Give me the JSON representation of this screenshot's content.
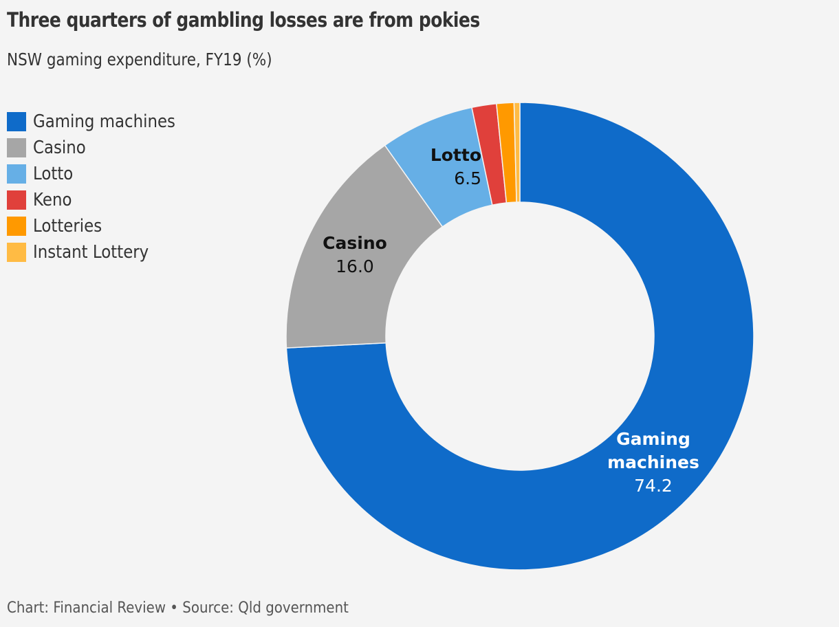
{
  "header": {
    "title": "Three quarters of gambling losses are from pokies",
    "subtitle": "NSW gaming expenditure, FY19 (%)"
  },
  "legend": {
    "items": [
      {
        "label": "Gaming machines",
        "color": "#0f6bc9"
      },
      {
        "label": "Casino",
        "color": "#a6a6a6"
      },
      {
        "label": "Lotto",
        "color": "#66afe6"
      },
      {
        "label": "Keno",
        "color": "#e0403b"
      },
      {
        "label": "Lotteries",
        "color": "#ff9900"
      },
      {
        "label": "Instant Lottery",
        "color": "#ffbb44"
      }
    ]
  },
  "labels": {
    "gaming": {
      "name_line1": "Gaming",
      "name_line2": "machines",
      "value": "74.2"
    },
    "casino": {
      "name": "Casino",
      "value": "16.0"
    },
    "lotto": {
      "name": "Lotto",
      "value": "6.5"
    }
  },
  "footer": {
    "credit": "Chart: Financial Review • Source: Qld government"
  },
  "chart_data": {
    "type": "pie",
    "subtype": "donut",
    "title": "Three quarters of gambling losses are from pokies",
    "subtitle": "NSW gaming expenditure, FY19 (%)",
    "categories": [
      "Gaming machines",
      "Casino",
      "Lotto",
      "Keno",
      "Lotteries",
      "Instant Lottery"
    ],
    "values": [
      74.2,
      16.0,
      6.5,
      1.7,
      1.2,
      0.4
    ],
    "colors": [
      "#0f6bc9",
      "#a6a6a6",
      "#66afe6",
      "#e0403b",
      "#ff9900",
      "#ffbb44"
    ],
    "data_labels": {
      "Gaming machines": "74.2",
      "Casino": "16.0",
      "Lotto": "6.5"
    },
    "legend_position": "top-left",
    "source": "Chart: Financial Review • Source: Qld government"
  }
}
